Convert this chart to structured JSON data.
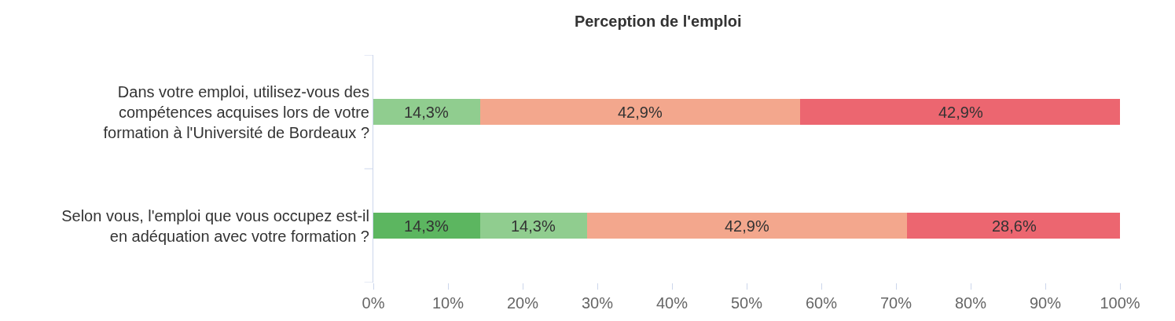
{
  "chart_data": {
    "type": "bar",
    "orientation": "horizontal",
    "stacked": true,
    "title": "Perception de l'emploi",
    "categories": [
      "Dans votre emploi, utilisez-vous des\ncompétences acquises lors de votre\nformation à l'Université de Bordeaux ?",
      "Selon vous, l'emploi que vous occupez est-il\nen adéquation avec votre formation ?"
    ],
    "series": [
      {
        "color": "#5cb660",
        "values": [
          null,
          14.3
        ],
        "value_labels": [
          null,
          "14,3%"
        ]
      },
      {
        "color": "#90cd8f",
        "values": [
          14.3,
          14.3
        ],
        "value_labels": [
          "14,3%",
          "14,3%"
        ]
      },
      {
        "color": "#f3a78d",
        "values": [
          42.9,
          42.9
        ],
        "value_labels": [
          "42,9%",
          "42,9%"
        ]
      },
      {
        "color": "#ec6670",
        "values": [
          42.9,
          28.6
        ],
        "value_labels": [
          "42,9%",
          "28,6%"
        ]
      }
    ],
    "xlim": [
      0,
      100
    ],
    "xticks": [
      {
        "value": 0,
        "label": "0%"
      },
      {
        "value": 10,
        "label": "10%"
      },
      {
        "value": 20,
        "label": "20%"
      },
      {
        "value": 30,
        "label": "30%"
      },
      {
        "value": 40,
        "label": "40%"
      },
      {
        "value": 50,
        "label": "50%"
      },
      {
        "value": 60,
        "label": "60%"
      },
      {
        "value": 70,
        "label": "70%"
      },
      {
        "value": 80,
        "label": "80%"
      },
      {
        "value": 90,
        "label": "90%"
      },
      {
        "value": 100,
        "label": "100%"
      }
    ]
  }
}
